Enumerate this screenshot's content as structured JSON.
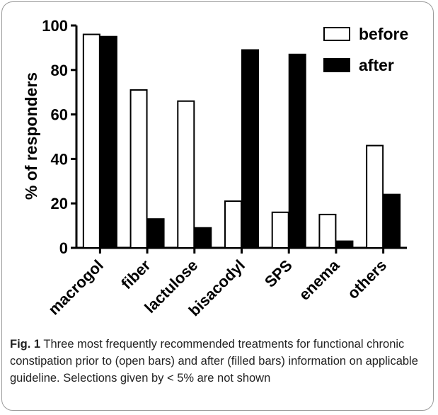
{
  "chart_data": {
    "type": "bar",
    "categories": [
      "macrogol",
      "fiber",
      "lactulose",
      "bisacodyl",
      "SPS",
      "enema",
      "others"
    ],
    "series": [
      {
        "name": "before",
        "values": [
          96,
          71,
          66,
          21,
          16,
          15,
          46
        ],
        "fill": "open"
      },
      {
        "name": "after",
        "values": [
          95,
          13,
          9,
          89,
          87,
          3,
          24
        ],
        "fill": "filled"
      }
    ],
    "ylabel": "% of responders",
    "xlabel": "",
    "ylim": [
      0,
      100
    ],
    "yticks": [
      0,
      20,
      40,
      60,
      80,
      100
    ],
    "grid": false,
    "legend": "top-right",
    "colors": {
      "before_fill": "#ffffff",
      "after_fill": "#000000",
      "axis": "#000000"
    }
  },
  "caption": {
    "label": "Fig. 1",
    "text": "Three most frequently recommended treatments for functional chronic constipation prior to (open bars) and after (filled bars) information on applicable guideline. Selections given by < 5% are not shown"
  }
}
